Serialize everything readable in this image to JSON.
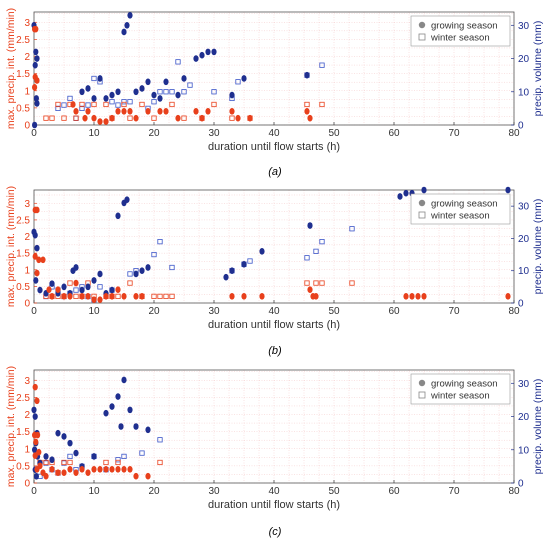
{
  "colors": {
    "growing": "#1f2f8f",
    "winter": "#3b55c8",
    "intensity": "#e8401c",
    "intensity_axis": "#e8401c",
    "volume_axis": "#1f2f8f",
    "grid": "#f4c7c7"
  },
  "shared": {
    "xlabel": "duration until flow starts (h)",
    "ylabel_left": "max. precip. int. (mm/min)",
    "ylabel_right": "precip. volume (mm)",
    "legend": [
      "growing season",
      "winter season"
    ],
    "xticks": [
      "0",
      "10",
      "20",
      "30",
      "40",
      "50",
      "60",
      "70",
      "80"
    ]
  },
  "panel_labels": [
    "(a)",
    "(b)",
    "(c)"
  ],
  "chart_data": [
    {
      "type": "scatter",
      "xlim": [
        0,
        80
      ],
      "ylim_left": [
        0,
        3.3
      ],
      "ylim_right": [
        0,
        34
      ],
      "yticks_left": [
        "0",
        "0.5",
        "1",
        "1.5",
        "2",
        "2.5",
        "3"
      ],
      "yticks_right": [
        "0",
        "10",
        "20",
        "30"
      ],
      "legend_position": "top-right",
      "grid": true,
      "intensity_growing": [
        [
          0.1,
          2.8
        ],
        [
          0.3,
          2.8
        ],
        [
          0.2,
          1.4
        ],
        [
          0.5,
          1.3
        ],
        [
          0.1,
          1.1
        ],
        [
          6.5,
          0.6
        ],
        [
          7,
          0.4
        ],
        [
          8.5,
          0.2
        ],
        [
          9,
          0.4
        ],
        [
          10,
          0.2
        ],
        [
          11,
          0.1
        ],
        [
          12,
          0.1
        ],
        [
          13,
          0.2
        ],
        [
          14,
          0.4
        ],
        [
          15,
          0.4
        ],
        [
          16,
          0.4
        ],
        [
          17,
          0.2
        ],
        [
          19,
          0.4
        ],
        [
          21,
          0.4
        ],
        [
          22,
          0.4
        ],
        [
          24,
          0.2
        ],
        [
          27,
          0.4
        ],
        [
          28,
          0.2
        ],
        [
          29,
          0.4
        ],
        [
          33,
          0.4
        ],
        [
          34,
          0.2
        ],
        [
          36,
          0.2
        ],
        [
          45.5,
          0.4
        ],
        [
          46,
          0.2
        ]
      ],
      "intensity_winter": [
        [
          2,
          0.2
        ],
        [
          3,
          0.2
        ],
        [
          4,
          0.6
        ],
        [
          5,
          0.2
        ],
        [
          6,
          0.6
        ],
        [
          7,
          0.2
        ],
        [
          8,
          0.6
        ],
        [
          10,
          0.6
        ],
        [
          12,
          0.6
        ],
        [
          13,
          0.2
        ],
        [
          15,
          0.6
        ],
        [
          16,
          0.2
        ],
        [
          18,
          0.6
        ],
        [
          20,
          0.2
        ],
        [
          23,
          0.6
        ],
        [
          25,
          0.2
        ],
        [
          28,
          0.2
        ],
        [
          30,
          0.6
        ],
        [
          33,
          0.2
        ],
        [
          36,
          0.2
        ],
        [
          45.5,
          0.6
        ],
        [
          48,
          0.6
        ]
      ],
      "volume_growing": [
        [
          0,
          30
        ],
        [
          0.3,
          22
        ],
        [
          0.5,
          20
        ],
        [
          0.2,
          18
        ],
        [
          0.4,
          8
        ],
        [
          0.5,
          6.5
        ],
        [
          0.1,
          0
        ],
        [
          8,
          10
        ],
        [
          9,
          11
        ],
        [
          10,
          8
        ],
        [
          11,
          14
        ],
        [
          12,
          8
        ],
        [
          13,
          9
        ],
        [
          14,
          10
        ],
        [
          15,
          28
        ],
        [
          15.5,
          30
        ],
        [
          16,
          33
        ],
        [
          17,
          10
        ],
        [
          18,
          11
        ],
        [
          19,
          13
        ],
        [
          20,
          9
        ],
        [
          21,
          8
        ],
        [
          22,
          13
        ],
        [
          24,
          9
        ],
        [
          25,
          14
        ],
        [
          27,
          20
        ],
        [
          28,
          21
        ],
        [
          29,
          22
        ],
        [
          30,
          22
        ],
        [
          33,
          9
        ],
        [
          35,
          14
        ],
        [
          45.5,
          15
        ]
      ],
      "volume_winter": [
        [
          4,
          5
        ],
        [
          5,
          6
        ],
        [
          6,
          8
        ],
        [
          7,
          2
        ],
        [
          8,
          5
        ],
        [
          9,
          6
        ],
        [
          10,
          14
        ],
        [
          11,
          13
        ],
        [
          13,
          7
        ],
        [
          14,
          6
        ],
        [
          15,
          7
        ],
        [
          16,
          7
        ],
        [
          19,
          5
        ],
        [
          20,
          7
        ],
        [
          21,
          10
        ],
        [
          22,
          10
        ],
        [
          23,
          10
        ],
        [
          24,
          19
        ],
        [
          25,
          10
        ],
        [
          26,
          12
        ],
        [
          30,
          10
        ],
        [
          33,
          8
        ],
        [
          34,
          13
        ],
        [
          45.5,
          15
        ],
        [
          48,
          18
        ]
      ]
    },
    {
      "type": "scatter",
      "xlim": [
        0,
        80
      ],
      "ylim_left": [
        0,
        3.4
      ],
      "ylim_right": [
        0,
        35
      ],
      "yticks_left": [
        "0",
        "0.5",
        "1",
        "1.5",
        "2",
        "2.5",
        "3"
      ],
      "yticks_right": [
        "0",
        "10",
        "20",
        "30"
      ],
      "legend_position": "top-right",
      "grid": true,
      "intensity_growing": [
        [
          0.2,
          2.8
        ],
        [
          0.5,
          2.8
        ],
        [
          0.2,
          1.4
        ],
        [
          0.8,
          1.3
        ],
        [
          1.5,
          1.3
        ],
        [
          0.5,
          0.9
        ],
        [
          2.5,
          0.4
        ],
        [
          3,
          0.2
        ],
        [
          4,
          0.4
        ],
        [
          5,
          0.2
        ],
        [
          6,
          0.2
        ],
        [
          7,
          0.6
        ],
        [
          8,
          0.2
        ],
        [
          9,
          0.2
        ],
        [
          10,
          0.1
        ],
        [
          11,
          0.1
        ],
        [
          12,
          0.2
        ],
        [
          13,
          0.2
        ],
        [
          14,
          0.4
        ],
        [
          15,
          0.2
        ],
        [
          17,
          0.2
        ],
        [
          18,
          0.2
        ],
        [
          33,
          0.2
        ],
        [
          35,
          0.2
        ],
        [
          38,
          0.2
        ],
        [
          46,
          0.4
        ],
        [
          46.5,
          0.2
        ],
        [
          47,
          0.2
        ],
        [
          62,
          0.2
        ],
        [
          63,
          0.2
        ],
        [
          64,
          0.2
        ],
        [
          65,
          0.2
        ],
        [
          79,
          0.2
        ]
      ],
      "intensity_winter": [
        [
          2,
          0.2
        ],
        [
          3,
          0.2
        ],
        [
          4,
          0.2
        ],
        [
          5,
          0.2
        ],
        [
          6,
          0.6
        ],
        [
          7,
          0.2
        ],
        [
          8,
          0.2
        ],
        [
          9,
          0.6
        ],
        [
          10,
          0.2
        ],
        [
          12,
          0.2
        ],
        [
          13,
          0.2
        ],
        [
          14,
          0.2
        ],
        [
          16,
          0.6
        ],
        [
          18,
          0.2
        ],
        [
          20,
          0.2
        ],
        [
          21,
          0.2
        ],
        [
          22,
          0.2
        ],
        [
          23,
          0.2
        ],
        [
          45.5,
          0.6
        ],
        [
          47,
          0.6
        ],
        [
          48,
          0.6
        ],
        [
          53,
          0.6
        ]
      ],
      "volume_growing": [
        [
          0,
          22
        ],
        [
          0.2,
          21
        ],
        [
          0.5,
          17
        ],
        [
          0.3,
          7
        ],
        [
          1,
          4
        ],
        [
          2,
          3
        ],
        [
          3,
          6
        ],
        [
          4,
          3
        ],
        [
          5,
          5
        ],
        [
          6,
          3
        ],
        [
          6.5,
          10
        ],
        [
          7,
          11
        ],
        [
          8,
          4
        ],
        [
          9,
          5
        ],
        [
          10,
          7
        ],
        [
          11,
          9
        ],
        [
          12,
          3
        ],
        [
          13,
          4
        ],
        [
          14,
          27
        ],
        [
          15,
          31
        ],
        [
          15.5,
          32
        ],
        [
          17,
          9
        ],
        [
          18,
          10
        ],
        [
          19,
          11
        ],
        [
          32,
          8
        ],
        [
          33,
          10
        ],
        [
          35,
          12
        ],
        [
          38,
          16
        ],
        [
          46,
          24
        ],
        [
          61,
          33
        ],
        [
          62,
          34
        ],
        [
          63,
          34
        ],
        [
          65,
          35
        ],
        [
          79,
          35
        ]
      ],
      "volume_winter": [
        [
          2,
          2
        ],
        [
          3,
          5
        ],
        [
          4,
          4
        ],
        [
          5,
          2
        ],
        [
          6,
          3
        ],
        [
          7,
          4
        ],
        [
          8,
          5
        ],
        [
          9,
          2
        ],
        [
          10,
          1
        ],
        [
          11,
          5
        ],
        [
          13,
          4
        ],
        [
          16,
          9
        ],
        [
          17,
          10
        ],
        [
          20,
          15
        ],
        [
          21,
          19
        ],
        [
          23,
          11
        ],
        [
          33,
          10
        ],
        [
          35,
          12
        ],
        [
          36,
          13
        ],
        [
          45.5,
          14
        ],
        [
          47,
          16
        ],
        [
          48,
          19
        ],
        [
          53,
          23
        ]
      ]
    },
    {
      "type": "scatter",
      "xlim": [
        0,
        80
      ],
      "ylim_left": [
        0,
        3.3
      ],
      "ylim_right": [
        0,
        34
      ],
      "yticks_left": [
        "0",
        "0.5",
        "1",
        "1.5",
        "2",
        "2.5",
        "3"
      ],
      "yticks_right": [
        "0",
        "10",
        "20",
        "30"
      ],
      "legend_position": "top-right",
      "grid": true,
      "intensity_growing": [
        [
          0.2,
          2.8
        ],
        [
          0.5,
          2.4
        ],
        [
          0.1,
          1.4
        ],
        [
          0.6,
          1.4
        ],
        [
          0.3,
          1.2
        ],
        [
          0.8,
          0.9
        ],
        [
          0.2,
          0.8
        ],
        [
          1,
          0.5
        ],
        [
          0.5,
          0.4
        ],
        [
          1.5,
          0.3
        ],
        [
          2,
          0.2
        ],
        [
          3,
          0.4
        ],
        [
          4,
          0.3
        ],
        [
          5,
          0.3
        ],
        [
          6,
          0.4
        ],
        [
          7,
          0.3
        ],
        [
          8,
          0.4
        ],
        [
          9,
          0.3
        ],
        [
          10,
          0.4
        ],
        [
          11,
          0.4
        ],
        [
          12,
          0.4
        ],
        [
          13,
          0.4
        ],
        [
          14,
          0.4
        ],
        [
          15,
          0.4
        ],
        [
          16,
          0.4
        ],
        [
          17,
          0.2
        ],
        [
          19,
          0.2
        ]
      ],
      "intensity_winter": [
        [
          1,
          0.6
        ],
        [
          2,
          0.6
        ],
        [
          3,
          0.6
        ],
        [
          4,
          0.3
        ],
        [
          5,
          0.6
        ],
        [
          6,
          0.6
        ],
        [
          12,
          0.6
        ],
        [
          14,
          0.6
        ],
        [
          21,
          0.6
        ]
      ],
      "volume_growing": [
        [
          0,
          22
        ],
        [
          0.2,
          20
        ],
        [
          0.5,
          15
        ],
        [
          0.3,
          12
        ],
        [
          0.1,
          10
        ],
        [
          0.6,
          8
        ],
        [
          0.2,
          4
        ],
        [
          0.4,
          2
        ],
        [
          1,
          6
        ],
        [
          2,
          8
        ],
        [
          3,
          7
        ],
        [
          4,
          15
        ],
        [
          5,
          14
        ],
        [
          6,
          12
        ],
        [
          7,
          9
        ],
        [
          8,
          5
        ],
        [
          10,
          8
        ],
        [
          12,
          21
        ],
        [
          13,
          23
        ],
        [
          14,
          26
        ],
        [
          14.5,
          17
        ],
        [
          15,
          31
        ],
        [
          16,
          22
        ],
        [
          17,
          17
        ],
        [
          19,
          16
        ]
      ],
      "volume_winter": [
        [
          1,
          2
        ],
        [
          2,
          6
        ],
        [
          3,
          4
        ],
        [
          4,
          3
        ],
        [
          5,
          6
        ],
        [
          6,
          8
        ],
        [
          7,
          4
        ],
        [
          8,
          5
        ],
        [
          10,
          8
        ],
        [
          12,
          4
        ],
        [
          14,
          7
        ],
        [
          15,
          8
        ],
        [
          18,
          9
        ],
        [
          21,
          13
        ]
      ]
    }
  ]
}
